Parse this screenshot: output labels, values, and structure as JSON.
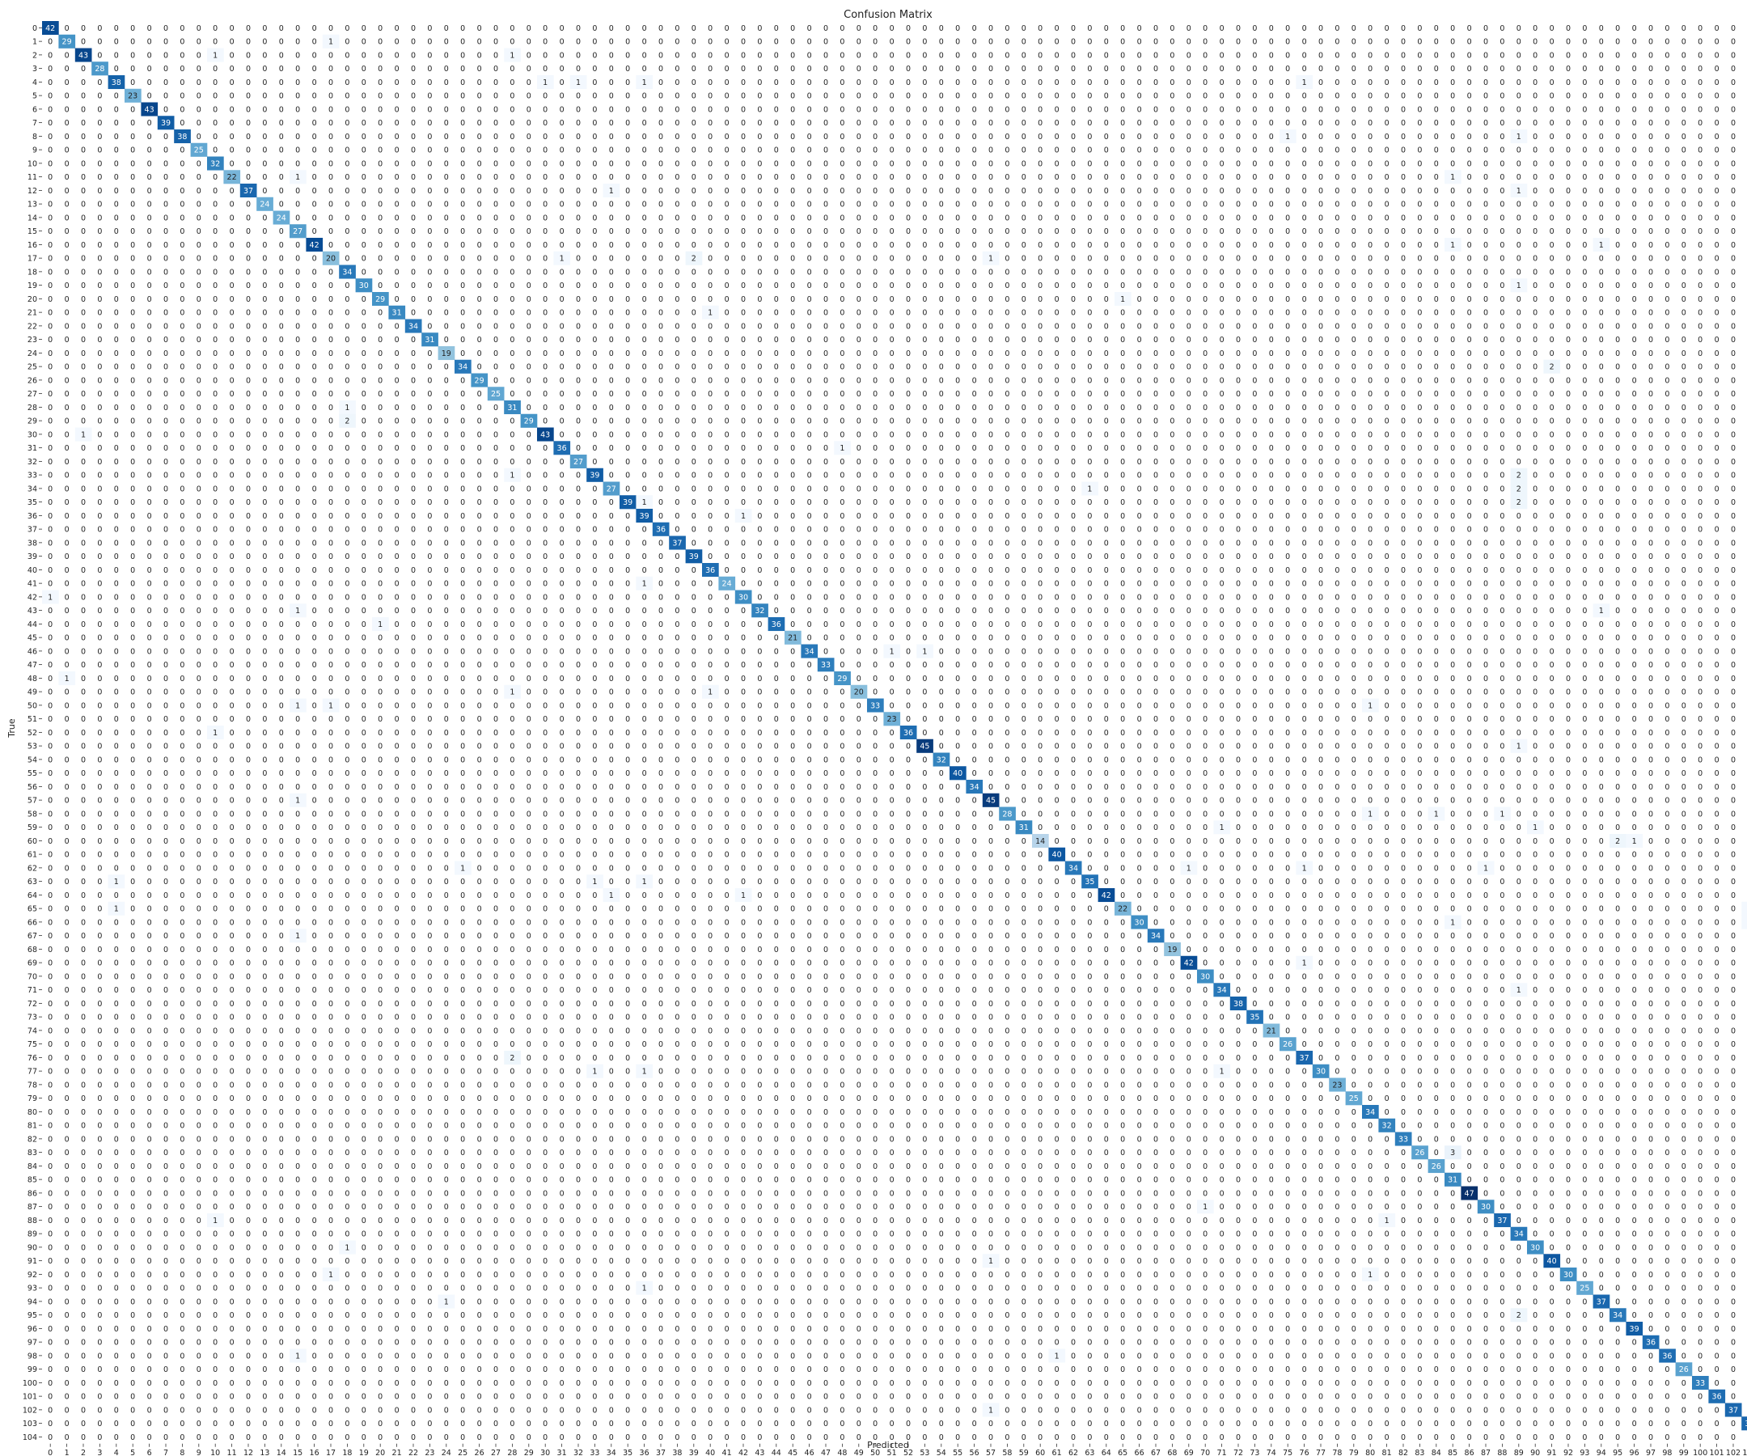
{
  "chart_data": {
    "type": "heatmap",
    "title": "Confusion Matrix",
    "xlabel": "Predicted",
    "ylabel": "True",
    "n_classes": 105,
    "colormap": "Blues",
    "vmin": 0,
    "vmax": 47,
    "low_color": "#f7fbff",
    "high_color": "#08306b",
    "diagonal": [
      42,
      29,
      43,
      28,
      38,
      23,
      43,
      39,
      38,
      25,
      32,
      22,
      37,
      24,
      24,
      27,
      42,
      20,
      34,
      30,
      29,
      31,
      34,
      31,
      19,
      34,
      29,
      25,
      31,
      29,
      43,
      36,
      27,
      39,
      27,
      39,
      39,
      36,
      37,
      39,
      36,
      24,
      30,
      32,
      36,
      21,
      34,
      33,
      29,
      20,
      33,
      23,
      36,
      45,
      32,
      40,
      34,
      45,
      28,
      31,
      14,
      40,
      34,
      35,
      42,
      22,
      30,
      34,
      19,
      42,
      30,
      34,
      38,
      35,
      21,
      26,
      37,
      30,
      23,
      25,
      34,
      32,
      33,
      26,
      26,
      31,
      47,
      30,
      37,
      34,
      30,
      40,
      30,
      25,
      37,
      34,
      39,
      36,
      36,
      26,
      33,
      36,
      37,
      37,
      37
    ],
    "off_diagonal": [
      [
        1,
        17,
        1
      ],
      [
        2,
        10,
        1
      ],
      [
        2,
        28,
        1
      ],
      [
        4,
        30,
        1
      ],
      [
        4,
        32,
        1
      ],
      [
        4,
        36,
        1
      ],
      [
        4,
        76,
        1
      ],
      [
        8,
        75,
        1
      ],
      [
        8,
        89,
        1
      ],
      [
        11,
        15,
        1
      ],
      [
        11,
        85,
        1
      ],
      [
        12,
        34,
        1
      ],
      [
        12,
        89,
        1
      ],
      [
        16,
        85,
        1
      ],
      [
        16,
        94,
        1
      ],
      [
        17,
        31,
        1
      ],
      [
        17,
        39,
        2
      ],
      [
        17,
        57,
        1
      ],
      [
        19,
        89,
        1
      ],
      [
        19,
        104,
        1
      ],
      [
        20,
        65,
        1
      ],
      [
        21,
        40,
        1
      ],
      [
        25,
        91,
        2
      ],
      [
        28,
        18,
        1
      ],
      [
        29,
        18,
        2
      ],
      [
        30,
        2,
        1
      ],
      [
        31,
        48,
        1
      ],
      [
        33,
        28,
        1
      ],
      [
        33,
        89,
        2
      ],
      [
        34,
        63,
        1
      ],
      [
        34,
        89,
        2
      ],
      [
        35,
        36,
        1
      ],
      [
        35,
        89,
        2
      ],
      [
        36,
        42,
        1
      ],
      [
        41,
        36,
        1
      ],
      [
        42,
        0,
        1
      ],
      [
        43,
        15,
        1
      ],
      [
        43,
        94,
        1
      ],
      [
        44,
        20,
        1
      ],
      [
        46,
        51,
        1
      ],
      [
        46,
        53,
        1
      ],
      [
        48,
        1,
        1
      ],
      [
        49,
        28,
        1
      ],
      [
        49,
        40,
        1
      ],
      [
        50,
        15,
        1
      ],
      [
        50,
        17,
        1
      ],
      [
        50,
        80,
        1
      ],
      [
        52,
        10,
        1
      ],
      [
        53,
        89,
        1
      ],
      [
        57,
        15,
        1
      ],
      [
        58,
        80,
        1
      ],
      [
        58,
        84,
        1
      ],
      [
        58,
        88,
        1
      ],
      [
        59,
        71,
        1
      ],
      [
        59,
        90,
        1
      ],
      [
        60,
        95,
        2
      ],
      [
        60,
        96,
        1
      ],
      [
        62,
        25,
        1
      ],
      [
        62,
        69,
        1
      ],
      [
        62,
        76,
        1
      ],
      [
        62,
        87,
        1
      ],
      [
        63,
        4,
        1
      ],
      [
        63,
        33,
        1
      ],
      [
        63,
        36,
        1
      ],
      [
        64,
        34,
        1
      ],
      [
        64,
        42,
        1
      ],
      [
        65,
        4,
        1
      ],
      [
        65,
        103,
        1
      ],
      [
        66,
        85,
        1
      ],
      [
        66,
        103,
        1
      ],
      [
        67,
        15,
        1
      ],
      [
        69,
        76,
        1
      ],
      [
        71,
        89,
        1
      ],
      [
        76,
        28,
        2
      ],
      [
        77,
        33,
        1
      ],
      [
        77,
        36,
        1
      ],
      [
        77,
        71,
        1
      ],
      [
        83,
        85,
        3
      ],
      [
        87,
        70,
        1
      ],
      [
        87,
        104,
        1
      ],
      [
        88,
        10,
        1
      ],
      [
        88,
        81,
        1
      ],
      [
        90,
        18,
        1
      ],
      [
        91,
        57,
        1
      ],
      [
        92,
        17,
        1
      ],
      [
        92,
        80,
        1
      ],
      [
        93,
        36,
        1
      ],
      [
        94,
        24,
        1
      ],
      [
        95,
        89,
        2
      ],
      [
        98,
        15,
        1
      ],
      [
        98,
        61,
        1
      ],
      [
        102,
        57,
        1
      ]
    ]
  }
}
